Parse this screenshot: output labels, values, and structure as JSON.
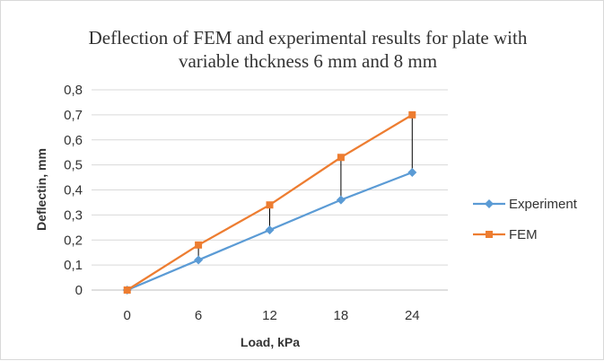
{
  "chart_data": {
    "type": "line",
    "title_lines": [
      "Deflection of FEM and experimental results for plate with",
      "variable thckness 6 mm and 8 mm"
    ],
    "xlabel": "Load, kPa",
    "ylabel": "Deflectin, mm",
    "categories": [
      "0",
      "6",
      "12",
      "18",
      "24"
    ],
    "y_ticks": [
      "0",
      "0,1",
      "0,2",
      "0,3",
      "0,4",
      "0,5",
      "0,6",
      "0,7",
      "0,8"
    ],
    "ylim": [
      0,
      0.8
    ],
    "grid": true,
    "legend_position": "right",
    "drop_lines": true,
    "series": [
      {
        "name": "Experiment",
        "marker": "diamond",
        "color": "#5b9bd5",
        "values": [
          0,
          0.12,
          0.24,
          0.36,
          0.47
        ]
      },
      {
        "name": "FEM",
        "marker": "square",
        "color": "#ed7d31",
        "values": [
          0,
          0.18,
          0.34,
          0.53,
          0.7
        ]
      }
    ]
  }
}
